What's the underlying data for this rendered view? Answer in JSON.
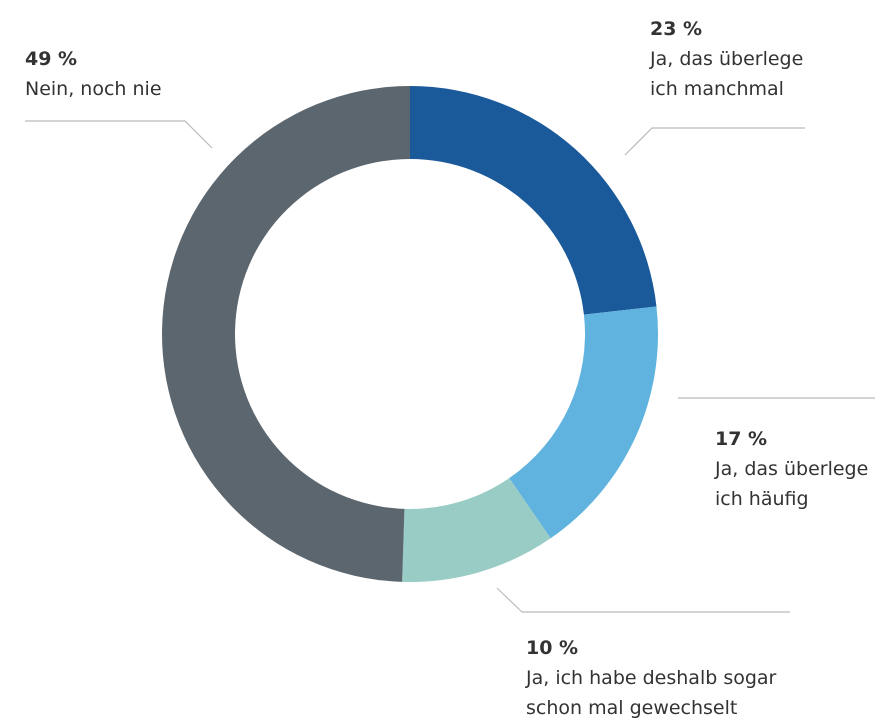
{
  "chart_data": {
    "type": "donut",
    "categories": [
      "Ja, das überlege ich manchmal",
      "Ja, das überlege ich häufig",
      "Ja, ich habe deshalb sogar schon mal gewechselt",
      "Nein, noch nie"
    ],
    "values": [
      23,
      17,
      10,
      49
    ],
    "value_labels": [
      "23 %",
      "17 %",
      "10 %",
      "49 %"
    ],
    "colors": [
      "#1b5a9a",
      "#5fb3de",
      "#98ccc5",
      "#5c666e"
    ]
  }
}
